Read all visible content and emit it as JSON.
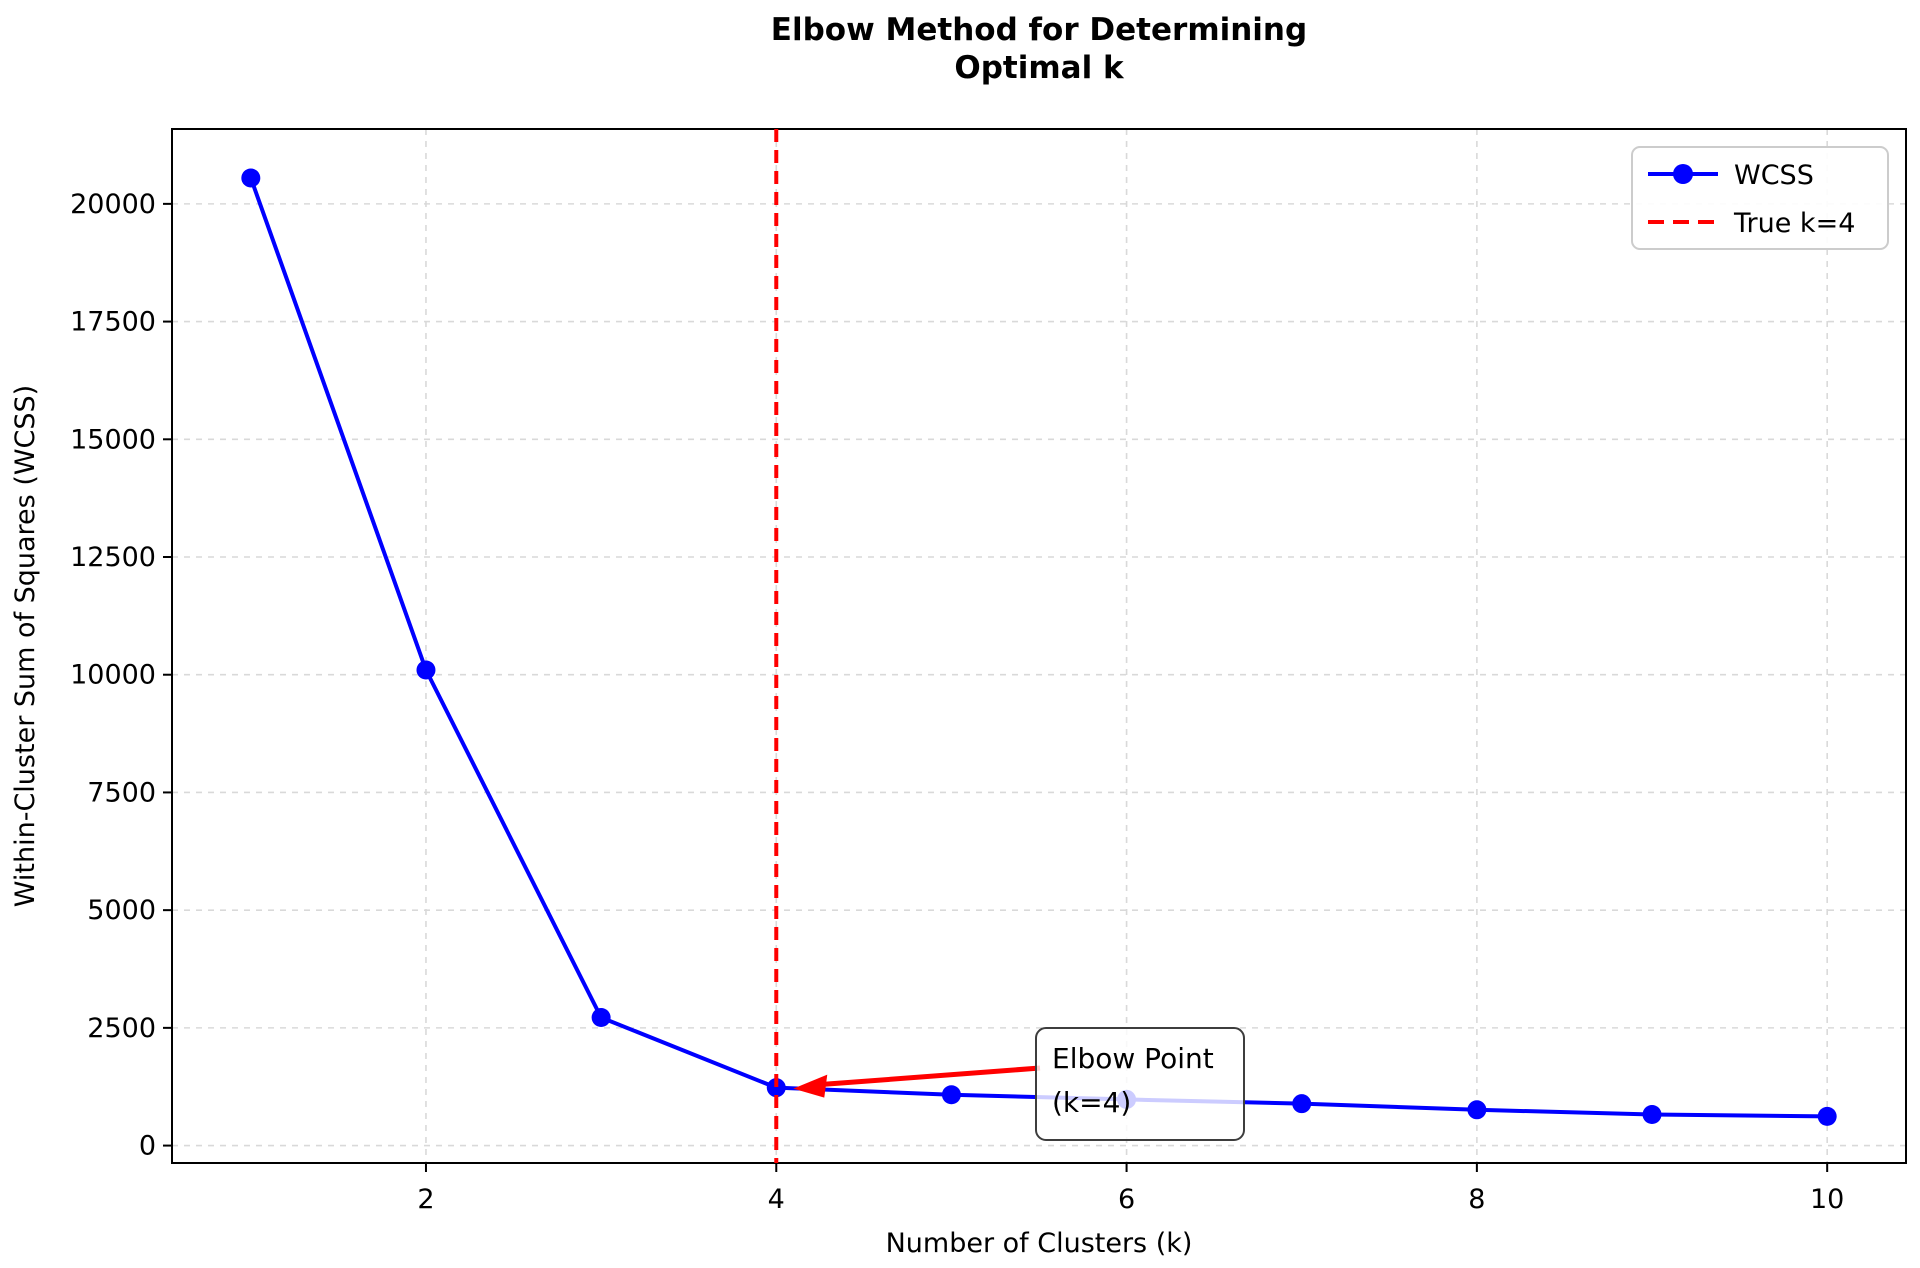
{
  "chart_data": {
    "type": "line",
    "title_line1": "Elbow Method for Determining",
    "title_line2": "Optimal k",
    "xlabel": "Number of Clusters (k)",
    "ylabel": "Within-Cluster Sum of Squares (WCSS)",
    "x": [
      1,
      2,
      3,
      4,
      5,
      6,
      7,
      8,
      9,
      10
    ],
    "series": [
      {
        "name": "WCSS",
        "color": "#0000ff",
        "marker": "circle",
        "values": [
          20550,
          10100,
          2720,
          1230,
          1080,
          980,
          890,
          760,
          660,
          620
        ]
      }
    ],
    "vline": {
      "x": 4,
      "label": "True k=4",
      "color": "#ff0000",
      "style": "dashed"
    },
    "annotation": {
      "line1": "Elbow Point",
      "line2": "(k=4)",
      "target_x": 4,
      "target_y": 1230,
      "color": "#ff0000"
    },
    "xticks": [
      2,
      4,
      6,
      8,
      10
    ],
    "yticks": [
      0,
      2500,
      5000,
      7500,
      10000,
      12500,
      15000,
      17500,
      20000
    ],
    "xlim": [
      0.55,
      10.45
    ],
    "ylim": [
      -370,
      21590
    ],
    "grid": true,
    "legend": {
      "position": "upper right",
      "entries": [
        "WCSS",
        "True k=4"
      ]
    },
    "colors": {
      "line": "#0000ff",
      "vline": "#ff0000",
      "grid": "#d9d9d9",
      "spine": "#000000",
      "annotation_text": "#ff0000",
      "annotation_border": "#3d3d3d",
      "legend_border": "#cccccc"
    }
  }
}
